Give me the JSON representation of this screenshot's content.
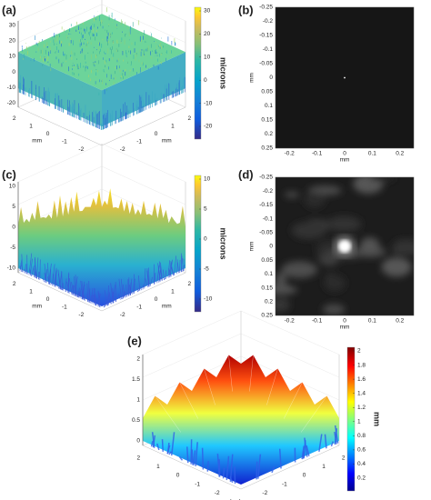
{
  "panels": [
    {
      "label": "(a)",
      "z_ticks": [
        "30",
        "20",
        "10",
        "0",
        "-10",
        "-20"
      ],
      "left_ticks": [
        "2",
        "1",
        "0",
        "-1",
        "-2"
      ],
      "left_label": "mm",
      "right_ticks": [
        "-2",
        "-1",
        "0",
        "1",
        "2"
      ],
      "right_label": "mm",
      "colorbar": {
        "label": "microns",
        "ticks": [
          "30",
          "20",
          "10",
          "0",
          "-10",
          "-20"
        ]
      }
    },
    {
      "label": "(b)",
      "y_ticks": [
        "-0.25",
        "-0.2",
        "-0.15",
        "-0.1",
        "-0.05",
        "0",
        "0.05",
        "0.1",
        "0.15",
        "0.2",
        "0.25"
      ],
      "y_label": "mm",
      "x_ticks": [
        "-0.2",
        "-0.1",
        "0",
        "0.1",
        "0.2"
      ],
      "x_label": "mm"
    },
    {
      "label": "(c)",
      "z_ticks": [
        "10",
        "5",
        "0",
        "-5",
        "-10"
      ],
      "left_ticks": [
        "2",
        "1",
        "0",
        "-1",
        "-2"
      ],
      "left_label": "mm",
      "right_ticks": [
        "-2",
        "-1",
        "0",
        "1",
        "2"
      ],
      "right_label": "mm",
      "colorbar": {
        "label": "microns",
        "ticks": [
          "10",
          "5",
          "0",
          "-5",
          "-10"
        ]
      }
    },
    {
      "label": "(d)",
      "y_ticks": [
        "-0.25",
        "-0.2",
        "-0.15",
        "-0.1",
        "-0.05",
        "0",
        "0.05",
        "0.1",
        "0.15",
        "0.2",
        "0.25"
      ],
      "y_label": "mm",
      "x_ticks": [
        "-0.2",
        "-0.1",
        "0",
        "0.1",
        "0.2"
      ],
      "x_label": "mm"
    },
    {
      "label": "(e)",
      "z_ticks": [
        "2",
        "1.5",
        "1",
        "0.5",
        "0"
      ],
      "left_ticks": [
        "2",
        "1",
        "0",
        "-1",
        "-2"
      ],
      "right_ticks": [
        "-2",
        "-1",
        "0",
        "1",
        "2"
      ],
      "axis_label": "(x,y) mm",
      "colorbar": {
        "label": "mm",
        "ticks": [
          "2",
          "1.8",
          "1.6",
          "1.4",
          "1.2",
          "1",
          "0.8",
          "0.6",
          "0.4",
          "0.2"
        ]
      }
    }
  ]
}
